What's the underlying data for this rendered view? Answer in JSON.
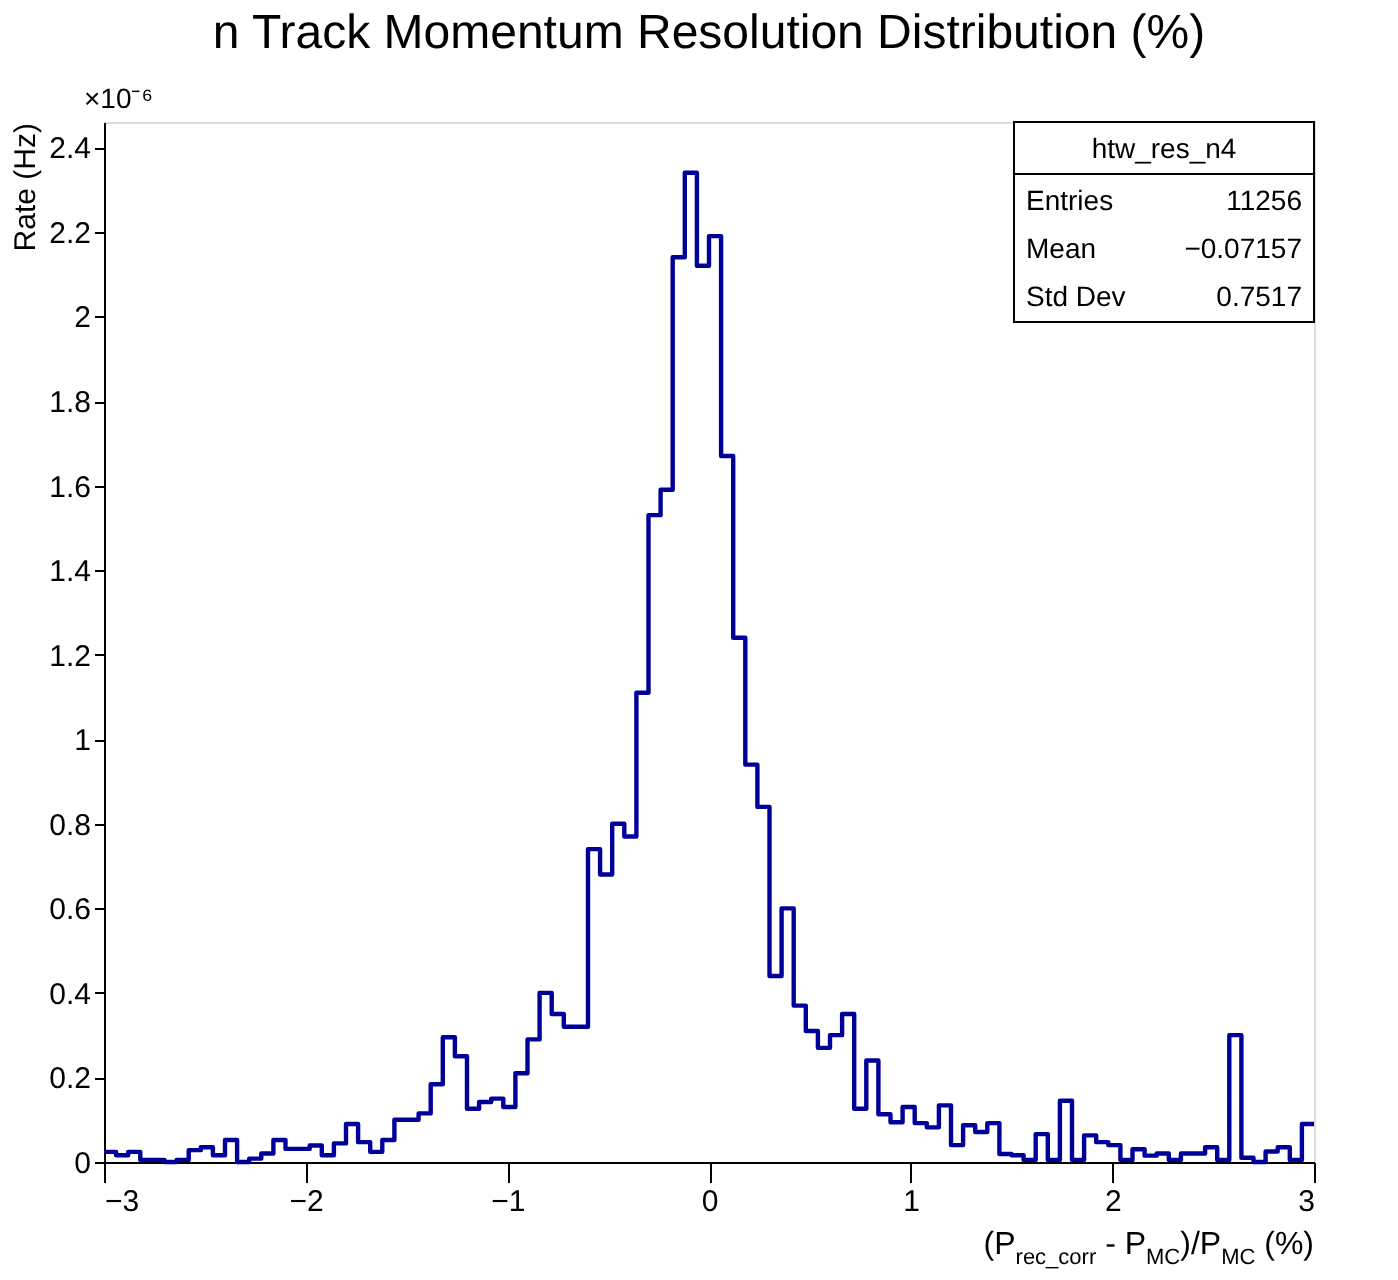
{
  "chart_data": {
    "type": "histogram",
    "title": "n Track Momentum Resolution Distribution (%)",
    "xlabel": "(P$_{rec_corr}$ - P$_{MC}$)/P$_{MC}$ (%)",
    "ylabel": "Rate (Hz)",
    "bins": [
      -3.0,
      -2.94,
      -2.88,
      -2.82,
      -2.76,
      -2.7,
      -2.64,
      -2.58,
      -2.52,
      -2.46,
      -2.4,
      -2.34,
      -2.28,
      -2.22,
      -2.16,
      -2.1,
      -2.04,
      -1.98,
      -1.92,
      -1.86,
      -1.8,
      -1.74,
      -1.68,
      -1.62,
      -1.56,
      -1.5,
      -1.44,
      -1.38,
      -1.32,
      -1.26,
      -1.2,
      -1.14,
      -1.08,
      -1.02,
      -0.96,
      -0.9,
      -0.84,
      -0.78,
      -0.72,
      -0.66,
      -0.6,
      -0.54,
      -0.48,
      -0.42,
      -0.36,
      -0.3,
      -0.24,
      -0.18,
      -0.12,
      -0.06,
      0.0,
      0.06,
      0.12,
      0.18,
      0.24,
      0.3,
      0.36,
      0.42,
      0.48,
      0.54,
      0.6,
      0.66,
      0.72,
      0.78,
      0.84,
      0.9,
      0.96,
      1.02,
      1.08,
      1.14,
      1.2,
      1.26,
      1.32,
      1.38,
      1.44,
      1.5,
      1.56,
      1.62,
      1.68,
      1.74,
      1.8,
      1.86,
      1.92,
      1.98,
      2.04,
      2.1,
      2.16,
      2.22,
      2.28,
      2.34,
      2.4,
      2.46,
      2.52,
      2.58,
      2.64,
      2.7,
      2.76,
      2.82,
      2.88,
      2.94,
      3.0
    ],
    "values": [
      0.024,
      0.016,
      0.024,
      0.005,
      0.005,
      0.0,
      0.005,
      0.028,
      0.035,
      0.016,
      0.052,
      0.0,
      0.008,
      0.02,
      0.052,
      0.031,
      0.031,
      0.039,
      0.016,
      0.044,
      0.09,
      0.047,
      0.024,
      0.052,
      0.1,
      0.1,
      0.115,
      0.184,
      0.295,
      0.25,
      0.126,
      0.142,
      0.15,
      0.13,
      0.21,
      0.29,
      0.4,
      0.35,
      0.32,
      0.32,
      0.74,
      0.68,
      0.8,
      0.77,
      1.11,
      1.53,
      1.59,
      2.14,
      2.34,
      2.12,
      2.19,
      1.67,
      1.24,
      0.94,
      0.84,
      0.44,
      0.6,
      0.37,
      0.31,
      0.27,
      0.3,
      0.35,
      0.126,
      0.24,
      0.113,
      0.094,
      0.13,
      0.092,
      0.082,
      0.134,
      0.04,
      0.087,
      0.071,
      0.092,
      0.019,
      0.016,
      0.005,
      0.066,
      0.005,
      0.145,
      0.005,
      0.063,
      0.047,
      0.04,
      0.005,
      0.03,
      0.015,
      0.02,
      0.005,
      0.02,
      0.02,
      0.035,
      0.005,
      0.3,
      0.01,
      0.0,
      0.025,
      0.035,
      0.005,
      0.09
    ],
    "color": "#000099",
    "xlim": [
      -3,
      3
    ],
    "xticks": [
      -3,
      -2,
      -1,
      0,
      1,
      2,
      3
    ],
    "ylim": [
      0,
      2.46
    ],
    "yticks": [
      {
        "value": 0,
        "label": "0"
      },
      0.2,
      0.4,
      0.6,
      0.8,
      {
        "value": 1,
        "label": "1"
      },
      1.2,
      1.4,
      1.6,
      1.8,
      {
        "value": 2,
        "label": "2"
      },
      2.2,
      2.4
    ],
    "grid": false,
    "annotations": [
      "×10⁻⁶",
      "htw_res_n4",
      "Entries 11256",
      "Mean −0.07157",
      "Std Dev 0.7517"
    ]
  }
}
